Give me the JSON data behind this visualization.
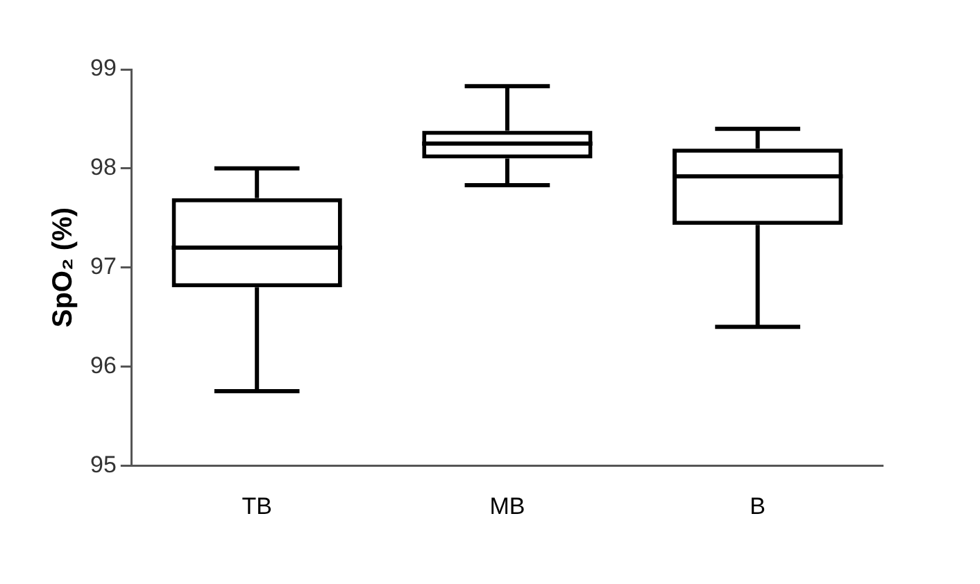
{
  "chart_data": {
    "type": "box",
    "ylabel": "SpO₂ (%)",
    "categories": [
      "TB",
      "MB",
      "B"
    ],
    "boxes": [
      {
        "low": 95.75,
        "q1": 96.8,
        "median": 97.2,
        "q3": 97.7,
        "high": 98.0
      },
      {
        "low": 97.83,
        "q1": 98.1,
        "median": 98.25,
        "q3": 98.38,
        "high": 98.83
      },
      {
        "low": 96.4,
        "q1": 97.43,
        "median": 97.92,
        "q3": 98.2,
        "high": 98.4
      }
    ],
    "ylim": [
      95,
      99
    ],
    "yticks": [
      95,
      96,
      97,
      98,
      99
    ],
    "grid": false,
    "legend": false
  }
}
